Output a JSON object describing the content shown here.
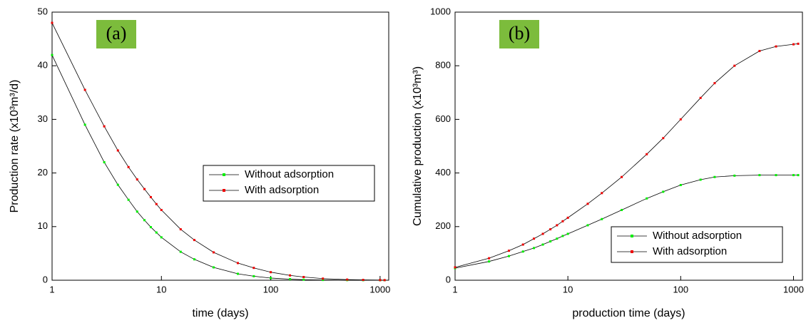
{
  "chart_data": [
    {
      "type": "line",
      "panel_label": "(a)",
      "xlabel": "time (days)",
      "ylabel": "Production rate (x10³m³/d)",
      "x": [
        1,
        2,
        3,
        4,
        5,
        6,
        7,
        8,
        9,
        10,
        15,
        20,
        30,
        50,
        70,
        100,
        150,
        200,
        300,
        500,
        700,
        1000,
        1100
      ],
      "series": [
        {
          "name": "Without adsorption",
          "color": "#00ee00",
          "values": [
            42,
            29,
            22,
            17.8,
            15,
            12.8,
            11.2,
            9.9,
            8.9,
            8.0,
            5.3,
            3.9,
            2.4,
            1.2,
            0.75,
            0.4,
            0.2,
            0.1,
            0.05,
            0.02,
            0.01,
            0,
            0
          ]
        },
        {
          "name": "With adsorption",
          "color": "#ee0000",
          "values": [
            48,
            35.5,
            28.7,
            24.2,
            21.1,
            18.8,
            17,
            15.5,
            14.2,
            13.1,
            9.5,
            7.5,
            5.2,
            3.2,
            2.3,
            1.5,
            0.9,
            0.6,
            0.3,
            0.12,
            0.06,
            0.03,
            0.02
          ]
        }
      ],
      "xscale": "log",
      "xlim": [
        1,
        1200
      ],
      "xticks": [
        1,
        10,
        100,
        1000
      ],
      "ylim": [
        0,
        50
      ],
      "yticks": [
        0,
        10,
        20,
        30,
        40,
        50
      ],
      "legend": "right"
    },
    {
      "type": "line",
      "panel_label": "(b)",
      "xlabel": "production time (days)",
      "ylabel": "Cumulative production (x10³m³)",
      "x": [
        1,
        2,
        3,
        4,
        5,
        6,
        7,
        8,
        9,
        10,
        15,
        20,
        30,
        50,
        70,
        100,
        150,
        200,
        300,
        500,
        700,
        1000,
        1100
      ],
      "series": [
        {
          "name": "Without adsorption",
          "color": "#00ee00",
          "values": [
            45,
            70,
            90,
            107,
            120,
            133,
            145,
            155,
            165,
            173,
            205,
            228,
            262,
            305,
            330,
            355,
            375,
            385,
            390,
            392,
            392,
            392,
            392
          ]
        },
        {
          "name": "With adsorption",
          "color": "#ee0000",
          "values": [
            48,
            82,
            110,
            133,
            155,
            173,
            190,
            205,
            220,
            233,
            285,
            325,
            385,
            470,
            530,
            600,
            680,
            735,
            800,
            855,
            872,
            880,
            882
          ]
        }
      ],
      "xscale": "log",
      "xlim": [
        1,
        1200
      ],
      "xticks": [
        1,
        10,
        100,
        1000
      ],
      "ylim": [
        0,
        1000
      ],
      "yticks": [
        0,
        200,
        400,
        600,
        800,
        1000
      ],
      "legend": "lower right"
    }
  ]
}
